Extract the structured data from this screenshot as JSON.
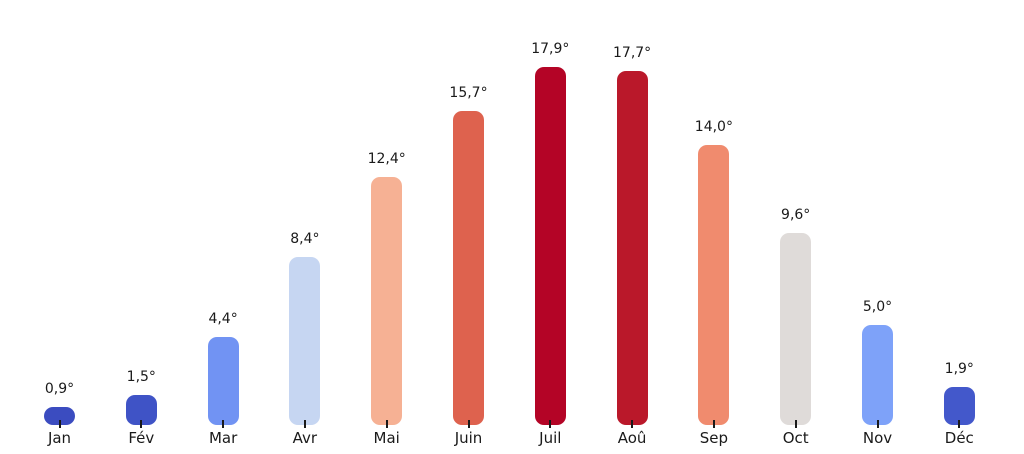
{
  "chart_data": {
    "type": "bar",
    "title": "",
    "xlabel": "",
    "ylabel": "",
    "categories": [
      "Jan",
      "Fév",
      "Mar",
      "Avr",
      "Mai",
      "Juin",
      "Juil",
      "Aoû",
      "Sep",
      "Oct",
      "Nov",
      "Déc"
    ],
    "values": [
      0.9,
      1.5,
      4.4,
      8.4,
      12.4,
      15.7,
      17.9,
      17.7,
      14.0,
      9.6,
      5.0,
      1.9
    ],
    "value_labels": [
      "0,9°",
      "1,5°",
      "4,4°",
      "8,4°",
      "12,4°",
      "15,7°",
      "17,9°",
      "17,7°",
      "14,0°",
      "9,6°",
      "5,0°",
      "1,9°"
    ],
    "bar_colors": [
      "#3b4cc0",
      "#3f53c6",
      "#7193f3",
      "#c6d6f2",
      "#f6b194",
      "#de624e",
      "#b40426",
      "#ba182a",
      "#f08b6e",
      "#dfdbd9",
      "#7ea2f9",
      "#4358cb"
    ],
    "ylim": [
      0,
      19
    ],
    "grid": false,
    "legend": "none",
    "axis_lines": "none",
    "tick_color": "#1a1a1a",
    "label_color": "#1a1a1a",
    "background_color": "#ffffff"
  }
}
